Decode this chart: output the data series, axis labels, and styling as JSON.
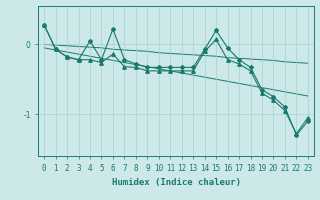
{
  "xlabel": "Humidex (Indice chaleur)",
  "background_color": "#cce8e8",
  "line_color": "#1a7a6e",
  "grid_color": "#aacfcf",
  "x_values": [
    0,
    1,
    2,
    3,
    4,
    5,
    6,
    7,
    8,
    9,
    10,
    11,
    12,
    13,
    14,
    15,
    16,
    17,
    18,
    19,
    20,
    21,
    22,
    23
  ],
  "series1": [
    0.28,
    -0.07,
    -0.18,
    -0.22,
    0.05,
    -0.22,
    0.22,
    -0.22,
    -0.28,
    -0.33,
    -0.33,
    -0.33,
    -0.33,
    -0.33,
    -0.07,
    0.2,
    -0.05,
    -0.22,
    -0.33,
    -0.65,
    -0.75,
    -0.9,
    -1.3,
    -1.1
  ],
  "series2": [
    0.28,
    -0.07,
    -0.18,
    -0.22,
    -0.22,
    -0.26,
    -0.14,
    -0.32,
    -0.33,
    -0.38,
    -0.38,
    -0.38,
    -0.38,
    -0.38,
    -0.1,
    0.07,
    -0.22,
    -0.28,
    -0.38,
    -0.7,
    -0.8,
    -0.95,
    -1.28,
    -1.05
  ],
  "trend1": [
    0.0,
    -0.01,
    -0.02,
    -0.03,
    -0.04,
    -0.05,
    -0.07,
    -0.08,
    -0.09,
    -0.1,
    -0.12,
    -0.13,
    -0.14,
    -0.15,
    -0.16,
    -0.17,
    -0.19,
    -0.2,
    -0.21,
    -0.22,
    -0.23,
    -0.25,
    -0.26,
    -0.27
  ],
  "trend2": [
    -0.05,
    -0.08,
    -0.11,
    -0.14,
    -0.17,
    -0.2,
    -0.23,
    -0.26,
    -0.29,
    -0.32,
    -0.35,
    -0.38,
    -0.41,
    -0.44,
    -0.47,
    -0.5,
    -0.53,
    -0.56,
    -0.59,
    -0.62,
    -0.65,
    -0.68,
    -0.71,
    -0.74
  ],
  "ylim": [
    -1.6,
    0.55
  ],
  "yticks": [
    0,
    -1
  ],
  "xlim": [
    -0.5,
    23.5
  ]
}
